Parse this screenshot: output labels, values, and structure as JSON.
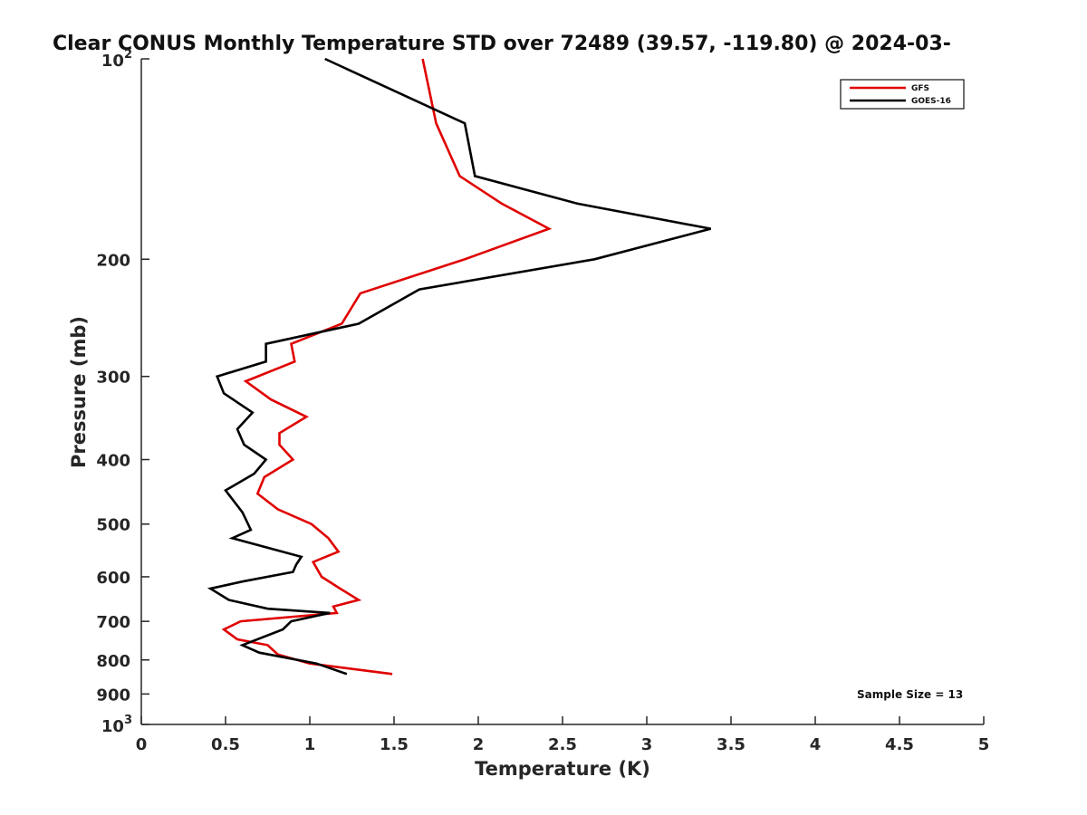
{
  "chart_data": {
    "type": "line",
    "title": "Clear CONUS Monthly Temperature STD over 72489 (39.57, -119.80) @ 2024-03-",
    "xlabel": "Temperature (K)",
    "ylabel": "Pressure (mb)",
    "xlim": [
      0,
      5
    ],
    "ylim": [
      100,
      1000
    ],
    "yscale": "log",
    "y_reversed": true,
    "x_ticks": [
      "0",
      "0.5",
      "1",
      "1.5",
      "2",
      "2.5",
      "3",
      "3.5",
      "4",
      "4.5",
      "5"
    ],
    "y_ticks": [
      {
        "value": 100,
        "base": "10",
        "exp": "2"
      },
      {
        "value": 200,
        "label": "200"
      },
      {
        "value": 300,
        "label": "300"
      },
      {
        "value": 400,
        "label": "400"
      },
      {
        "value": 500,
        "label": "500"
      },
      {
        "value": 600,
        "label": "600"
      },
      {
        "value": 700,
        "label": "700"
      },
      {
        "value": 800,
        "label": "800"
      },
      {
        "value": 900,
        "label": "900"
      },
      {
        "value": 1000,
        "base": "10",
        "exp": "3"
      }
    ],
    "legend_position": "top-right",
    "annotation": "Sample Size = 13",
    "series": [
      {
        "name": "GFS",
        "color": "#e00000",
        "points": [
          [
            1.67,
            100
          ],
          [
            1.75,
            125
          ],
          [
            1.89,
            150
          ],
          [
            2.14,
            165
          ],
          [
            2.42,
            180
          ],
          [
            1.92,
            200
          ],
          [
            1.3,
            225
          ],
          [
            1.19,
            250
          ],
          [
            0.89,
            268
          ],
          [
            0.91,
            285
          ],
          [
            0.62,
            305
          ],
          [
            0.77,
            325
          ],
          [
            0.98,
            345
          ],
          [
            0.82,
            365
          ],
          [
            0.82,
            380
          ],
          [
            0.9,
            400
          ],
          [
            0.73,
            425
          ],
          [
            0.69,
            450
          ],
          [
            0.81,
            475
          ],
          [
            1.01,
            500
          ],
          [
            1.11,
            525
          ],
          [
            1.17,
            550
          ],
          [
            1.02,
            570
          ],
          [
            1.07,
            600
          ],
          [
            1.18,
            625
          ],
          [
            1.29,
            650
          ],
          [
            1.14,
            665
          ],
          [
            1.16,
            680
          ],
          [
            0.59,
            700
          ],
          [
            0.49,
            720
          ],
          [
            0.57,
            745
          ],
          [
            0.75,
            760
          ],
          [
            0.81,
            785
          ],
          [
            1.0,
            810
          ],
          [
            1.49,
            840
          ]
        ]
      },
      {
        "name": "GOES-16",
        "color": "#000000",
        "points": [
          [
            1.09,
            100
          ],
          [
            1.92,
            125
          ],
          [
            1.98,
            150
          ],
          [
            2.59,
            165
          ],
          [
            3.38,
            180
          ],
          [
            2.69,
            200
          ],
          [
            1.65,
            222
          ],
          [
            1.29,
            250
          ],
          [
            0.74,
            268
          ],
          [
            0.74,
            285
          ],
          [
            0.45,
            300
          ],
          [
            0.49,
            318
          ],
          [
            0.66,
            340
          ],
          [
            0.57,
            360
          ],
          [
            0.61,
            380
          ],
          [
            0.74,
            400
          ],
          [
            0.67,
            420
          ],
          [
            0.5,
            445
          ],
          [
            0.6,
            480
          ],
          [
            0.65,
            510
          ],
          [
            0.54,
            525
          ],
          [
            0.95,
            560
          ],
          [
            0.92,
            575
          ],
          [
            0.9,
            590
          ],
          [
            0.6,
            610
          ],
          [
            0.41,
            625
          ],
          [
            0.52,
            650
          ],
          [
            0.75,
            670
          ],
          [
            1.12,
            680
          ],
          [
            0.89,
            700
          ],
          [
            0.84,
            720
          ],
          [
            0.6,
            760
          ],
          [
            0.7,
            780
          ],
          [
            1.04,
            810
          ],
          [
            1.22,
            840
          ]
        ]
      }
    ]
  }
}
